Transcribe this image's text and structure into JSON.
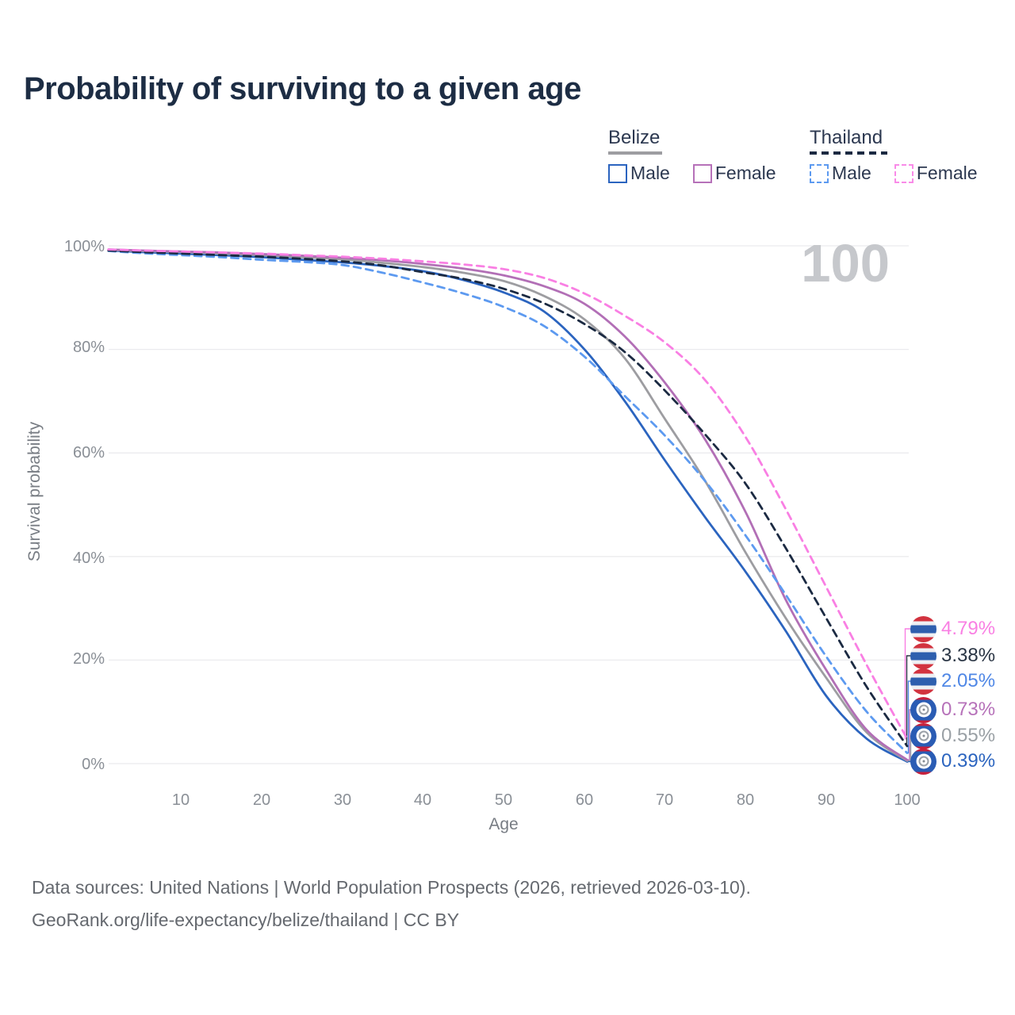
{
  "title": "Probability of surviving to a given age",
  "watermark": "100",
  "legend": {
    "belize": {
      "country": "Belize",
      "male": "Male",
      "female": "Female"
    },
    "thailand": {
      "country": "Thailand",
      "male": "Male",
      "female": "Female"
    }
  },
  "chart_data": {
    "type": "line",
    "title": "Probability of surviving to a given age",
    "xlabel": "Age",
    "ylabel": "Survival probability",
    "xlim": [
      1,
      100
    ],
    "ylim": [
      0,
      100
    ],
    "grid": "horizontal-only",
    "legend_position": "top-right",
    "x_ticks": [
      "10",
      "20",
      "30",
      "40",
      "50",
      "60",
      "70",
      "80",
      "90",
      "100"
    ],
    "y_tick_labels": [
      "100%",
      "80%",
      "60%",
      "40%",
      "20%",
      "0%"
    ],
    "series": [
      {
        "id": "belize-male",
        "name": "Belize Male",
        "color": "#2b64bf",
        "label_color": "#2b64bf",
        "dashed": false,
        "flag": "belize-flag-icon",
        "end_label": "0.39%",
        "points": [
          [
            1,
            99.1
          ],
          [
            5,
            98.8
          ],
          [
            10,
            98.5
          ],
          [
            15,
            98.2
          ],
          [
            20,
            97.8
          ],
          [
            25,
            97.3
          ],
          [
            30,
            96.8
          ],
          [
            35,
            96.1
          ],
          [
            40,
            95.1
          ],
          [
            45,
            93.4
          ],
          [
            50,
            91.0
          ],
          [
            55,
            87.3
          ],
          [
            60,
            80.0
          ],
          [
            65,
            70.0
          ],
          [
            70,
            58.5
          ],
          [
            75,
            47.5
          ],
          [
            80,
            37.0
          ],
          [
            85,
            25.5
          ],
          [
            90,
            13.0
          ],
          [
            95,
            4.8
          ],
          [
            100,
            0.39
          ]
        ]
      },
      {
        "id": "belize-all",
        "name": "Belize (both sexes)",
        "color": "#9d9da1",
        "label_color": "#9aa0a5",
        "dashed": false,
        "flag": "belize-flag-icon",
        "end_label": "0.55%",
        "points": [
          [
            1,
            99.2
          ],
          [
            5,
            99.0
          ],
          [
            10,
            98.8
          ],
          [
            15,
            98.5
          ],
          [
            20,
            98.2
          ],
          [
            25,
            97.8
          ],
          [
            30,
            97.4
          ],
          [
            35,
            96.7
          ],
          [
            40,
            95.9
          ],
          [
            45,
            94.8
          ],
          [
            50,
            93.2
          ],
          [
            55,
            90.3
          ],
          [
            60,
            85.8
          ],
          [
            65,
            78.3
          ],
          [
            70,
            66.5
          ],
          [
            75,
            54.5
          ],
          [
            80,
            40.7
          ],
          [
            85,
            28.0
          ],
          [
            90,
            16.5
          ],
          [
            95,
            6.0
          ],
          [
            100,
            0.55
          ]
        ]
      },
      {
        "id": "belize-female",
        "name": "Belize Female",
        "color": "#b26fb6",
        "label_color": "#b671b9",
        "dashed": false,
        "flag": "belize-flag-icon",
        "end_label": "0.73%",
        "points": [
          [
            1,
            99.3
          ],
          [
            5,
            99.1
          ],
          [
            10,
            98.9
          ],
          [
            15,
            98.7
          ],
          [
            20,
            98.4
          ],
          [
            25,
            98.1
          ],
          [
            30,
            97.7
          ],
          [
            35,
            97.2
          ],
          [
            40,
            96.5
          ],
          [
            45,
            95.6
          ],
          [
            50,
            94.3
          ],
          [
            55,
            92.2
          ],
          [
            60,
            88.8
          ],
          [
            65,
            82.5
          ],
          [
            70,
            73.5
          ],
          [
            75,
            62.5
          ],
          [
            80,
            48.5
          ],
          [
            85,
            31.5
          ],
          [
            90,
            18.0
          ],
          [
            95,
            6.5
          ],
          [
            100,
            0.73
          ]
        ]
      },
      {
        "id": "thailand-male",
        "name": "Thailand Male",
        "color": "#5d9af0",
        "label_color": "#4f87e6",
        "dashed": true,
        "flag": "thailand-flag-icon",
        "end_label": "2.05%",
        "points": [
          [
            1,
            99.0
          ],
          [
            5,
            98.6
          ],
          [
            10,
            98.2
          ],
          [
            15,
            97.8
          ],
          [
            20,
            97.3
          ],
          [
            25,
            96.9
          ],
          [
            30,
            96.3
          ],
          [
            35,
            94.8
          ],
          [
            40,
            92.9
          ],
          [
            45,
            90.8
          ],
          [
            50,
            88.2
          ],
          [
            55,
            84.5
          ],
          [
            60,
            78.6
          ],
          [
            65,
            71.0
          ],
          [
            70,
            63.3
          ],
          [
            75,
            54.5
          ],
          [
            80,
            44.0
          ],
          [
            85,
            32.5
          ],
          [
            90,
            20.6
          ],
          [
            95,
            10.0
          ],
          [
            100,
            2.05
          ]
        ]
      },
      {
        "id": "thailand-all",
        "name": "Thailand (both sexes)",
        "color": "#1b2a42",
        "label_color": "#2a3544",
        "dashed": true,
        "flag": "thailand-flag-icon",
        "end_label": "3.38%",
        "points": [
          [
            1,
            99.1
          ],
          [
            5,
            98.8
          ],
          [
            10,
            98.5
          ],
          [
            15,
            98.2
          ],
          [
            20,
            97.9
          ],
          [
            25,
            97.5
          ],
          [
            30,
            97.0
          ],
          [
            35,
            96.2
          ],
          [
            40,
            94.9
          ],
          [
            45,
            93.6
          ],
          [
            50,
            91.7
          ],
          [
            55,
            88.9
          ],
          [
            60,
            84.9
          ],
          [
            65,
            79.5
          ],
          [
            70,
            72.0
          ],
          [
            75,
            63.5
          ],
          [
            80,
            54.0
          ],
          [
            85,
            41.5
          ],
          [
            90,
            28.0
          ],
          [
            95,
            14.8
          ],
          [
            100,
            3.38
          ]
        ]
      },
      {
        "id": "thailand-female",
        "name": "Thailand Female",
        "color": "#f97fe3",
        "label_color": "#f97fe3",
        "dashed": true,
        "flag": "thailand-flag-icon",
        "end_label": "4.79%",
        "points": [
          [
            1,
            99.3
          ],
          [
            5,
            99.1
          ],
          [
            10,
            98.9
          ],
          [
            15,
            98.7
          ],
          [
            20,
            98.5
          ],
          [
            25,
            98.2
          ],
          [
            30,
            97.9
          ],
          [
            35,
            97.5
          ],
          [
            40,
            97.0
          ],
          [
            45,
            96.4
          ],
          [
            50,
            95.5
          ],
          [
            55,
            93.8
          ],
          [
            60,
            90.8
          ],
          [
            65,
            86.5
          ],
          [
            70,
            81.3
          ],
          [
            75,
            74.0
          ],
          [
            80,
            63.0
          ],
          [
            85,
            49.0
          ],
          [
            90,
            34.0
          ],
          [
            95,
            19.0
          ],
          [
            100,
            4.79
          ]
        ]
      }
    ]
  },
  "footer": {
    "line1": "Data sources: United Nations | World Population Prospects (2026, retrieved 2026-03-10).",
    "line2": "GeoRank.org/life-expectancy/belize/thailand | CC BY"
  }
}
